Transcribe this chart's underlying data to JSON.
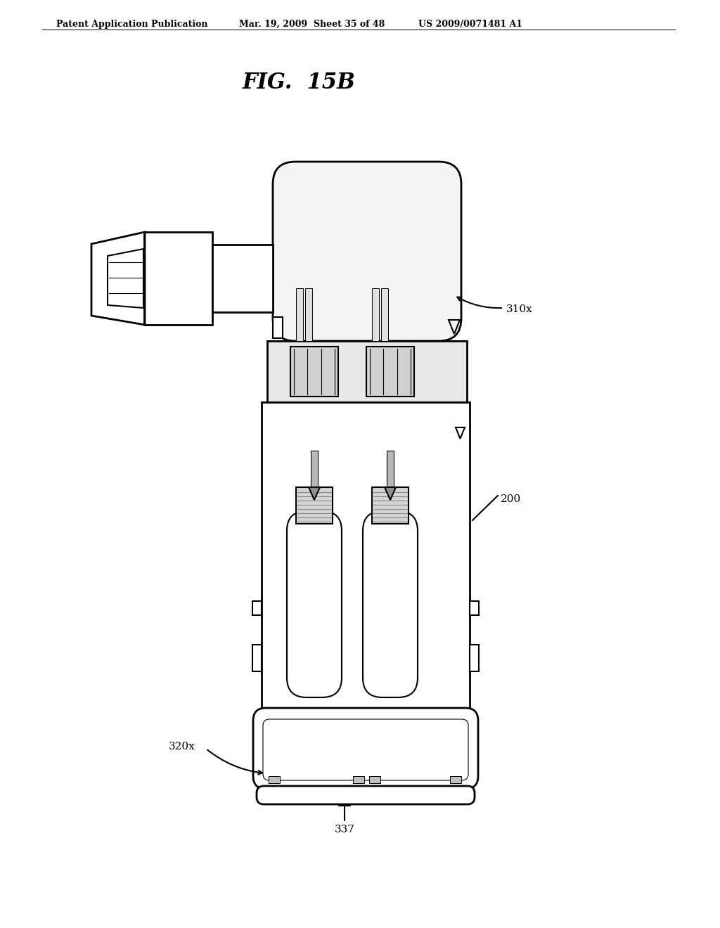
{
  "background_color": "#ffffff",
  "title": "FIG.  15B",
  "header_left": "Patent Application Publication",
  "header_mid": "Mar. 19, 2009  Sheet 35 of 48",
  "header_right": "US 2009/0071481 A1",
  "label_310x": "310x",
  "label_200": "200",
  "label_320x": "320x",
  "label_337": "337",
  "line_color": "#000000",
  "line_width": 1.5,
  "cyl_rounding": 30
}
